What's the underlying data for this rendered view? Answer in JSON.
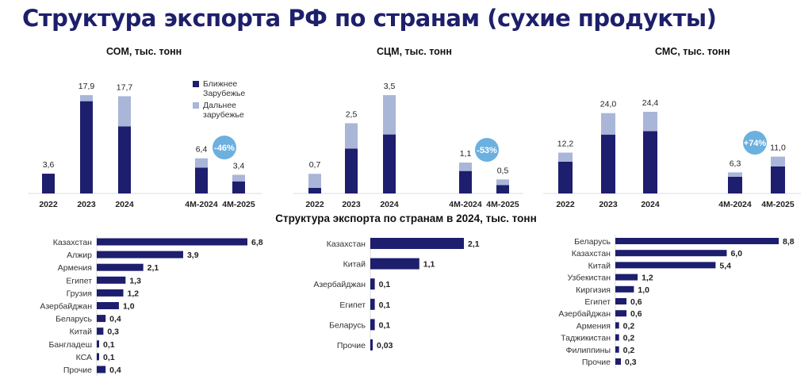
{
  "page": {
    "title": "Структура экспорта РФ по странам (сухие продукты)",
    "section_title": "Структура экспорта по странам в 2024, тыс. тонн"
  },
  "legend": {
    "near": "Ближнее Зарубежье",
    "far": "Дальнее зарубежье"
  },
  "colors": {
    "near": "#1d1e6e",
    "far": "#a9b6d8",
    "badge": "#6cb0e0",
    "title": "#1e1f6b",
    "divider": "#dddddd"
  },
  "chart_data": [
    {
      "id": "som",
      "type": "bar",
      "stacked": true,
      "title": "СОМ, тыс. тонн",
      "categories": [
        "2022",
        "2023",
        "2024",
        "4М-2024",
        "4М-2025"
      ],
      "totals": [
        "3,6",
        "17,9",
        "17,7",
        "6,4",
        "3,4"
      ],
      "series": [
        {
          "name": "Ближнее Зарубежье",
          "values": [
            3.6,
            16.8,
            12.2,
            4.7,
            2.2
          ]
        },
        {
          "name": "Дальнее зарубежье",
          "values": [
            0.0,
            1.1,
            5.5,
            1.7,
            1.2
          ]
        }
      ],
      "badge": {
        "text": "-46%"
      }
    },
    {
      "id": "scm",
      "type": "bar",
      "stacked": true,
      "title": "СЦМ, тыс. тонн",
      "categories": [
        "2022",
        "2023",
        "2024",
        "4М-2024",
        "4М-2025"
      ],
      "totals": [
        "0,7",
        "2,5",
        "3,5",
        "1,1",
        "0,5"
      ],
      "series": [
        {
          "name": "Ближнее Зарубежье",
          "values": [
            0.2,
            1.6,
            2.1,
            0.8,
            0.3
          ]
        },
        {
          "name": "Дальнее зарубежье",
          "values": [
            0.5,
            0.9,
            1.4,
            0.3,
            0.2
          ]
        }
      ],
      "badge": {
        "text": "-53%"
      }
    },
    {
      "id": "sms",
      "type": "bar",
      "stacked": true,
      "title": "СМС, тыс. тонн",
      "categories": [
        "2022",
        "2023",
        "2024",
        "4М-2024",
        "4М-2025"
      ],
      "totals": [
        "12,2",
        "24,0",
        "24,4",
        "6,3",
        "11,0"
      ],
      "series": [
        {
          "name": "Ближнее Зарубежье",
          "values": [
            9.5,
            17.6,
            18.6,
            5.0,
            8.1
          ]
        },
        {
          "name": "Дальнее зарубежье",
          "values": [
            2.7,
            6.4,
            5.8,
            1.3,
            2.9
          ]
        }
      ],
      "badge": {
        "text": "+74%"
      }
    },
    {
      "id": "som_countries",
      "type": "bar",
      "orientation": "horizontal",
      "categories": [
        "Казахстан",
        "Алжир",
        "Армения",
        "Египет",
        "Грузия",
        "Азербайджан",
        "Беларусь",
        "Китай",
        "Бангладеш",
        "КСА",
        "Прочие"
      ],
      "values": [
        6.8,
        3.9,
        2.1,
        1.3,
        1.2,
        1.0,
        0.4,
        0.3,
        0.1,
        0.1,
        0.4
      ],
      "labels": [
        "6,8",
        "3,9",
        "2,1",
        "1,3",
        "1,2",
        "1,0",
        "0,4",
        "0,3",
        "0,1",
        "0,1",
        "0,4"
      ]
    },
    {
      "id": "scm_countries",
      "type": "bar",
      "orientation": "horizontal",
      "categories": [
        "Казахстан",
        "Китай",
        "Азербайджан",
        "Египет",
        "Беларусь",
        "Прочие"
      ],
      "values": [
        2.1,
        1.1,
        0.1,
        0.1,
        0.1,
        0.03
      ],
      "labels": [
        "2,1",
        "1,1",
        "0,1",
        "0,1",
        "0,1",
        "0,03"
      ]
    },
    {
      "id": "sms_countries",
      "type": "bar",
      "orientation": "horizontal",
      "categories": [
        "Беларусь",
        "Казахстан",
        "Китай",
        "Узбекистан",
        "Киргизия",
        "Египет",
        "Азербайджан",
        "Армения",
        "Таджикистан",
        "Филиппины",
        "Прочие"
      ],
      "values": [
        8.8,
        6.0,
        5.4,
        1.2,
        1.0,
        0.6,
        0.6,
        0.2,
        0.2,
        0.2,
        0.3
      ],
      "labels": [
        "8,8",
        "6,0",
        "5,4",
        "1,2",
        "1,0",
        "0,6",
        "0,6",
        "0,2",
        "0,2",
        "0,2",
        "0,3"
      ]
    }
  ]
}
